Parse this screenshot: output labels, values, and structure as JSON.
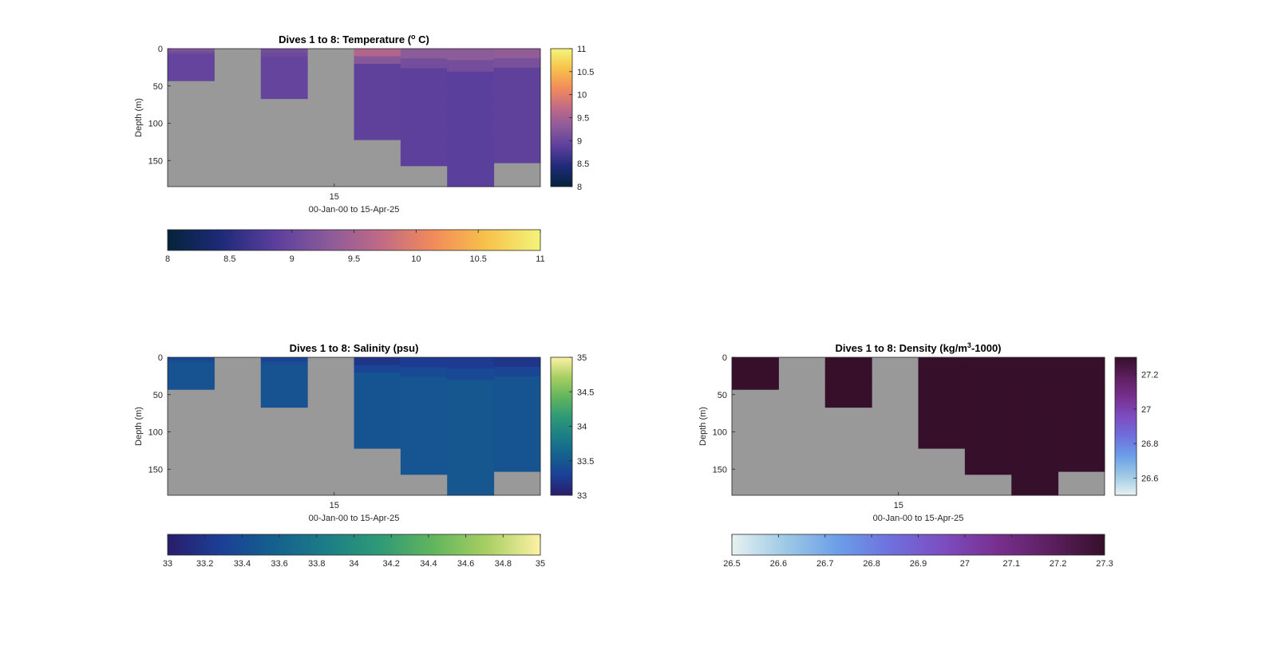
{
  "chart_data": [
    {
      "type": "heatmap",
      "variable": "Temperature",
      "title": "Dives 1 to 8: Temperature (",
      "title_sup": "o",
      "title_tail": " C)",
      "ylabel": "Depth (m)",
      "xlabel": "00-Jan-00 to 15-Apr-25",
      "x_ticks": [
        "15"
      ],
      "y_ticks": [
        "0",
        "50",
        "100",
        "150"
      ],
      "ylim": [
        0,
        185
      ],
      "clim": [
        8,
        11
      ],
      "colormap": "thermal",
      "colormap_stops": [
        "#04233a",
        "#1e2a78",
        "#5a3e9c",
        "#8a5a9a",
        "#c06a86",
        "#f28b5a",
        "#f7c24a",
        "#f3f57a"
      ],
      "no_data_color": "#999999",
      "side_colorbar_ticks": [
        "11",
        "10.5",
        "10",
        "9.5",
        "9",
        "8.5",
        "8"
      ],
      "bottom_colorbar_ticks": [
        "8",
        "8.5",
        "9",
        "9.5",
        "10",
        "10.5",
        "11"
      ],
      "dive_max_depth_m": [
        43,
        0,
        67,
        0,
        122,
        157,
        185,
        153
      ],
      "surface_value": [
        9.2,
        null,
        9.1,
        null,
        9.6,
        9.3,
        9.3,
        9.35
      ],
      "interior_value": [
        8.95,
        null,
        8.95,
        null,
        8.9,
        8.88,
        8.87,
        8.9
      ]
    },
    {
      "type": "heatmap",
      "variable": "Salinity",
      "title": "Dives 1 to 8: Salinity (psu)",
      "ylabel": "Depth (m)",
      "xlabel": "00-Jan-00 to 15-Apr-25",
      "x_ticks": [
        "15"
      ],
      "y_ticks": [
        "0",
        "50",
        "100",
        "150"
      ],
      "ylim": [
        0,
        185
      ],
      "clim": [
        33,
        35
      ],
      "colormap": "haline",
      "colormap_stops": [
        "#2a1c6b",
        "#1b3f96",
        "#14608e",
        "#1c7e86",
        "#2f9a77",
        "#62b55d",
        "#a8cf63",
        "#fdf1a5"
      ],
      "no_data_color": "#999999",
      "side_colorbar_ticks": [
        "35",
        "34.5",
        "34",
        "33.5",
        "33"
      ],
      "bottom_colorbar_ticks": [
        "33",
        "33.2",
        "33.4",
        "33.6",
        "33.8",
        "34",
        "34.2",
        "34.4",
        "34.6",
        "34.8",
        "35"
      ],
      "dive_max_depth_m": [
        43,
        0,
        67,
        0,
        122,
        157,
        185,
        153
      ],
      "surface_value": [
        33.35,
        null,
        33.35,
        null,
        33.2,
        33.25,
        33.25,
        33.2
      ],
      "interior_value": [
        33.45,
        null,
        33.45,
        null,
        33.47,
        33.48,
        33.49,
        33.47
      ]
    },
    {
      "type": "heatmap",
      "variable": "Density",
      "title": "Dives 1 to 8: Density (kg/m",
      "title_sup": "3",
      "title_tail": "-1000)",
      "ylabel": "Depth (m)",
      "xlabel": "00-Jan-00 to 15-Apr-25",
      "x_ticks": [
        "15"
      ],
      "y_ticks": [
        "0",
        "50",
        "100",
        "150"
      ],
      "ylim": [
        0,
        185
      ],
      "clim": [
        26.5,
        27.3
      ],
      "colormap": "dense",
      "colormap_stops": [
        "#e6f1f1",
        "#9ec9e6",
        "#6b9ee8",
        "#6f6fdd",
        "#7d4cbf",
        "#772f8e",
        "#5c1f5e",
        "#360f2a"
      ],
      "no_data_color": "#999999",
      "side_colorbar_ticks": [
        "27.2",
        "27",
        "26.8",
        "26.6"
      ],
      "bottom_colorbar_ticks": [
        "26.5",
        "26.6",
        "26.7",
        "26.8",
        "26.9",
        "27",
        "27.1",
        "27.2",
        "27.3"
      ],
      "dive_max_depth_m": [
        43,
        0,
        67,
        0,
        122,
        157,
        185,
        153
      ],
      "surface_value": [
        27.3,
        null,
        27.3,
        null,
        27.3,
        27.3,
        27.3,
        27.3
      ],
      "interior_value": [
        27.3,
        null,
        27.3,
        null,
        27.3,
        27.3,
        27.3,
        27.3
      ]
    }
  ]
}
